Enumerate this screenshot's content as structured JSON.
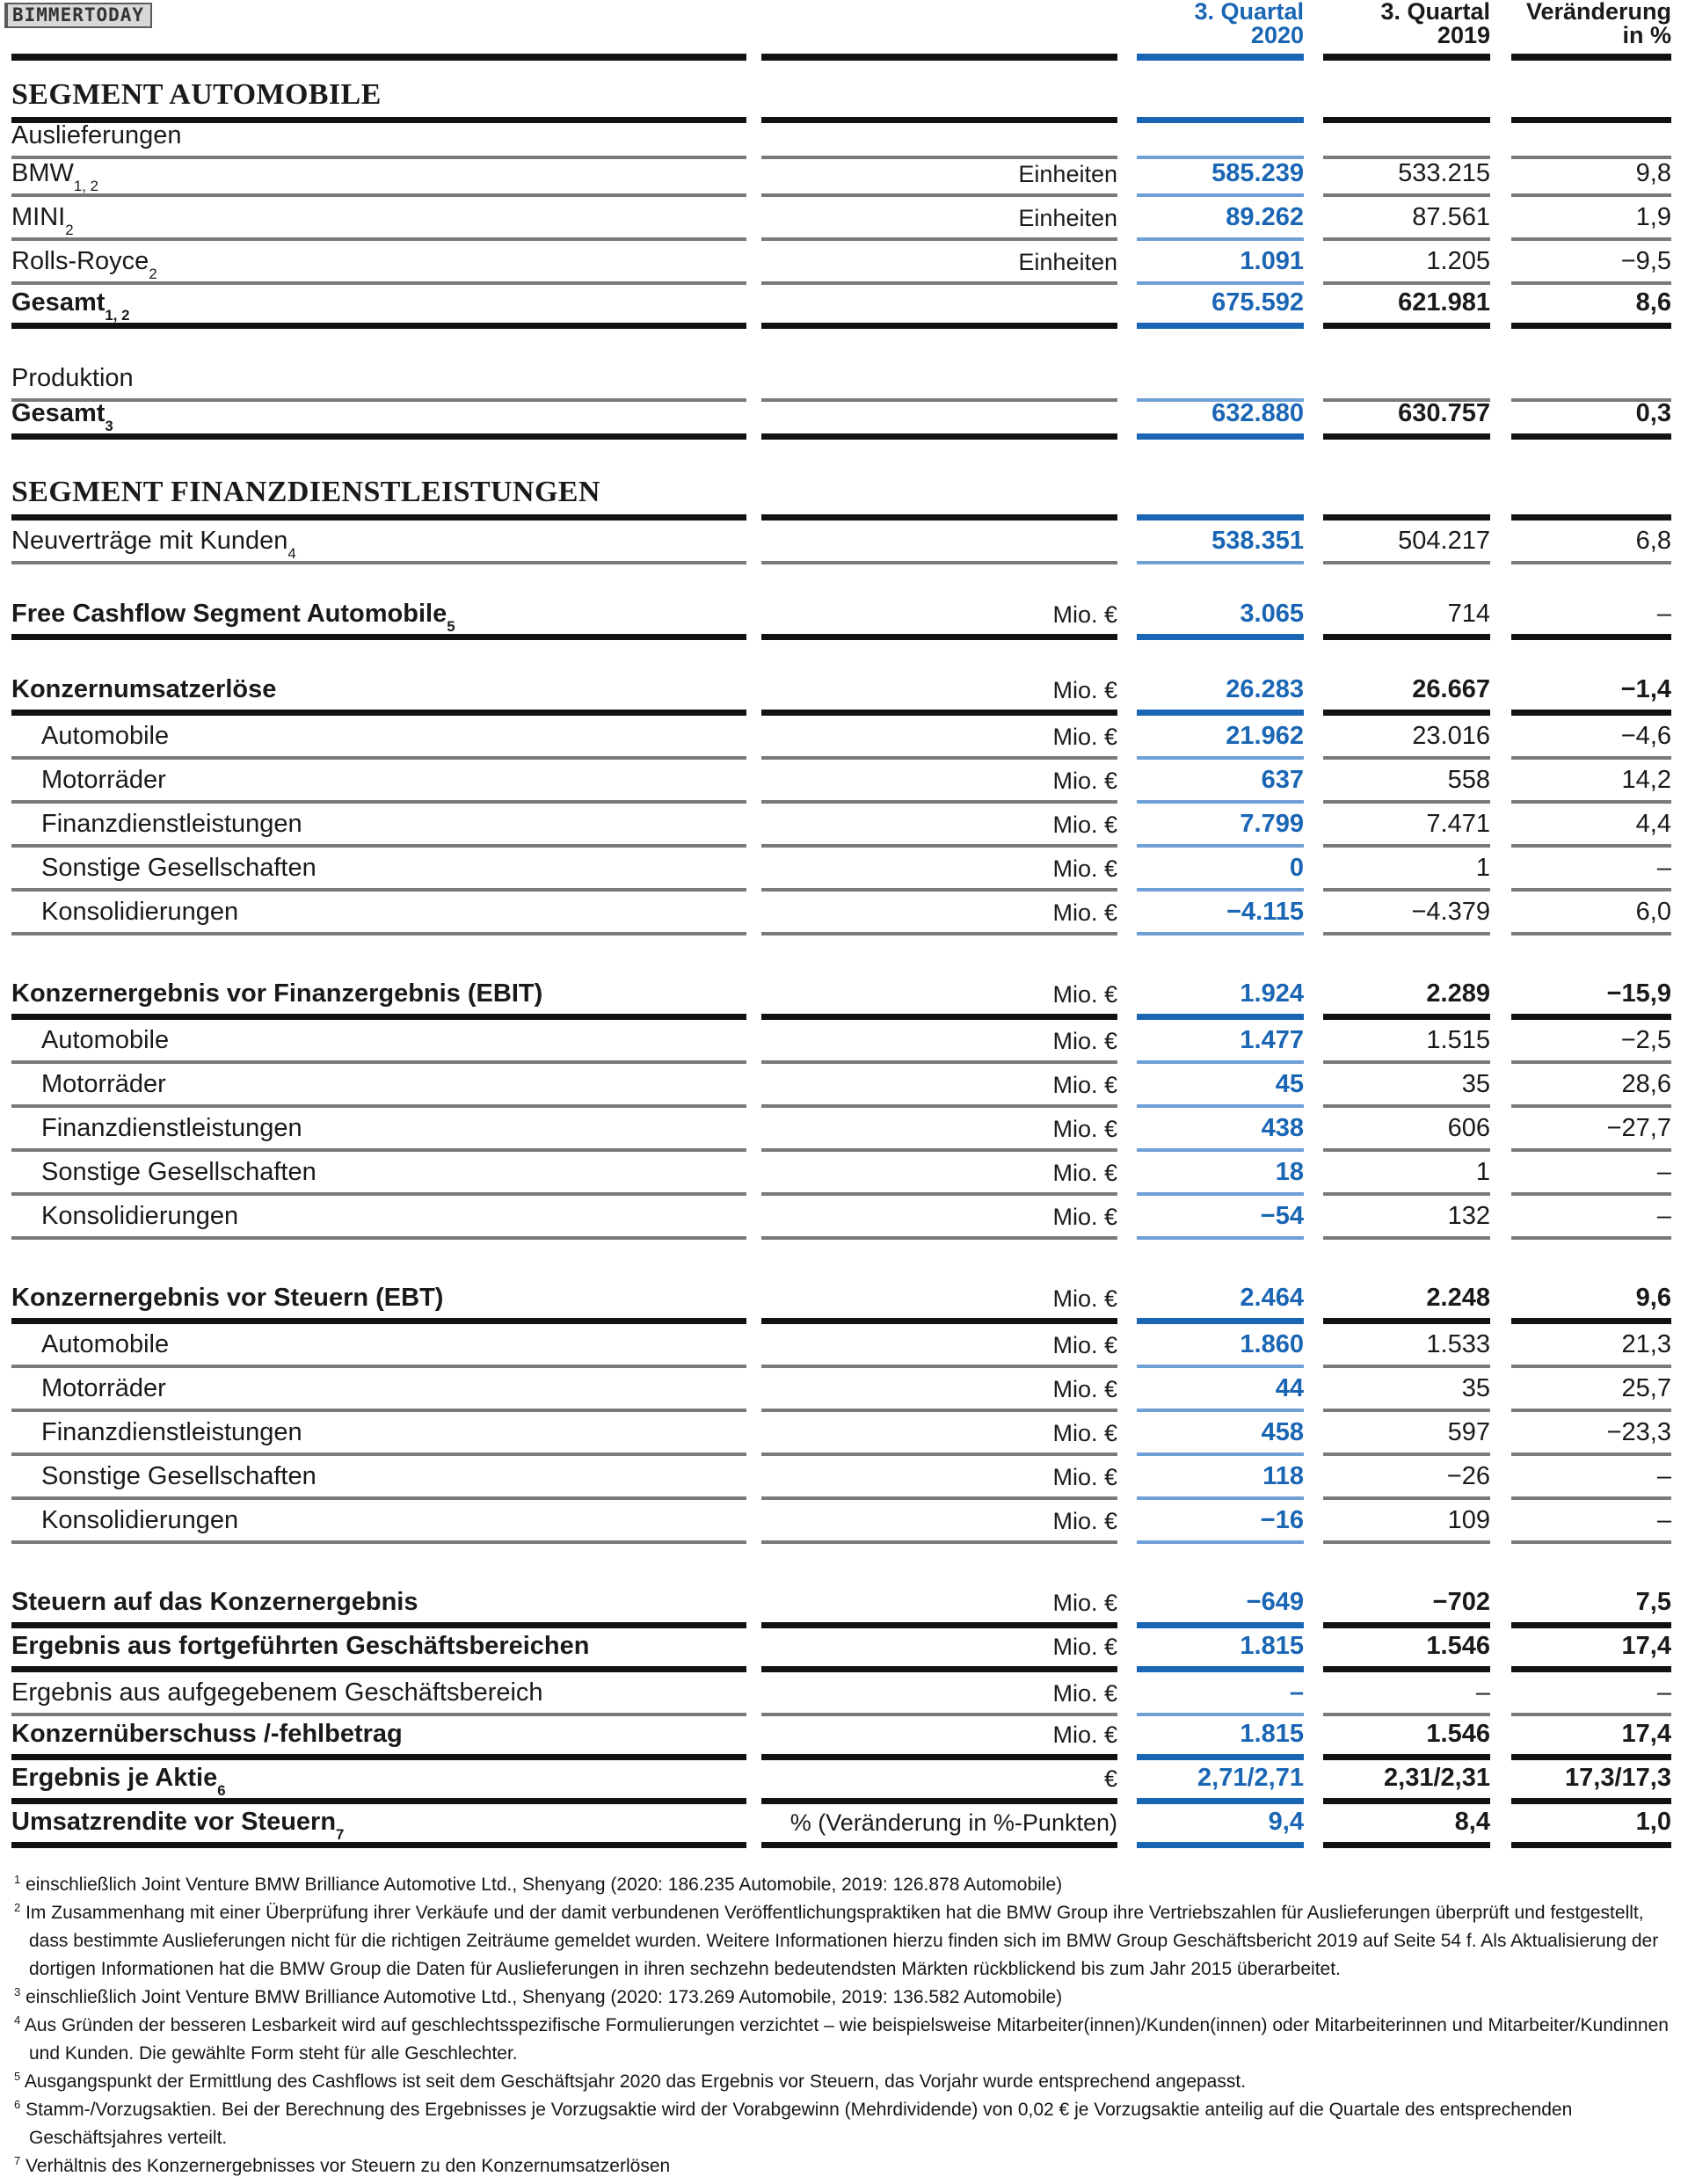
{
  "watermark": "BIMMERTODAY",
  "colors": {
    "blue_text": "#1A66B4",
    "blue_rule_thin": "#6E9FD5",
    "black_rule": "#121212",
    "gray_rule": "#7a7a7a"
  },
  "table": {
    "columns": {
      "c2020": "3. Quartal 2020",
      "c2019": "3. Quartal 2019",
      "change": "Veränderung in %"
    },
    "rows": [
      {
        "type": "colheader"
      },
      {
        "type": "spacer",
        "h": 42
      },
      {
        "type": "section",
        "label": "SEGMENT AUTOMOBILE"
      },
      {
        "type": "subhead",
        "label": "Auslieferungen"
      },
      {
        "type": "data",
        "label": "BMW",
        "sup": "1, 2",
        "unit": "Einheiten",
        "v2020": "585.239",
        "v2019": "533.215",
        "chg": "9,8",
        "rule": "thin"
      },
      {
        "type": "data",
        "label": "MINI",
        "sup": "2",
        "unit": "Einheiten",
        "v2020": "89.262",
        "v2019": "87.561",
        "chg": "1,9",
        "rule": "thin"
      },
      {
        "type": "data",
        "label": "Rolls-Royce",
        "sup": "2",
        "unit": "Einheiten",
        "v2020": "1.091",
        "v2019": "1.205",
        "chg": "−9,5",
        "rule": "thin"
      },
      {
        "type": "data",
        "label": "Gesamt",
        "sup": "1, 2",
        "bold": true,
        "vb": true,
        "unit": "",
        "v2020": "675.592",
        "v2019": "621.981",
        "chg": "8,6",
        "rule": "thick"
      },
      {
        "type": "spacer",
        "h": 42
      },
      {
        "type": "subhead",
        "label": "Produktion"
      },
      {
        "type": "data",
        "label": "Gesamt",
        "sup": "3",
        "bold": true,
        "vb": true,
        "unit": "",
        "v2020": "632.880",
        "v2019": "630.757",
        "chg": "0,3",
        "rule": "thick"
      },
      {
        "type": "spacer",
        "h": 42
      },
      {
        "type": "section",
        "label": "SEGMENT FINANZDIENSTLEISTUNGEN"
      },
      {
        "type": "data",
        "label": "Neuverträge mit Kunden",
        "sup": "4",
        "unit": "",
        "v2020": "538.351",
        "v2019": "504.217",
        "chg": "6,8",
        "rule": "thin"
      },
      {
        "type": "spacer",
        "h": 36
      },
      {
        "type": "data",
        "label": "Free Cashflow Segment Automobile",
        "sup": "5",
        "bold": true,
        "unit": "Mio. €",
        "v2020": "3.065",
        "v2019": "714",
        "chg": "–",
        "rule": "thick"
      },
      {
        "type": "spacer",
        "h": 36
      },
      {
        "type": "data",
        "label": "Konzernumsatzerlöse",
        "bold": true,
        "vb": true,
        "unit": "Mio. €",
        "v2020": "26.283",
        "v2019": "26.667",
        "chg": "−1,4",
        "rule": "thick"
      },
      {
        "type": "data",
        "label": "Automobile",
        "indent": true,
        "unit": "Mio. €",
        "v2020": "21.962",
        "v2019": "23.016",
        "chg": "−4,6",
        "rule": "thin"
      },
      {
        "type": "data",
        "label": "Motorräder",
        "indent": true,
        "unit": "Mio. €",
        "v2020": "637",
        "v2019": "558",
        "chg": "14,2",
        "rule": "thin"
      },
      {
        "type": "data",
        "label": "Finanzdienstleistungen",
        "indent": true,
        "unit": "Mio. €",
        "v2020": "7.799",
        "v2019": "7.471",
        "chg": "4,4",
        "rule": "thin"
      },
      {
        "type": "data",
        "label": "Sonstige Gesellschaften",
        "indent": true,
        "unit": "Mio. €",
        "v2020": "0",
        "v2019": "1",
        "chg": "–",
        "rule": "thin"
      },
      {
        "type": "data",
        "label": "Konsolidierungen",
        "indent": true,
        "unit": "Mio. €",
        "v2020": "−4.115",
        "v2019": "−4.379",
        "chg": "6,0",
        "rule": "thin"
      },
      {
        "type": "spacer",
        "h": 46
      },
      {
        "type": "data",
        "label": "Konzernergebnis vor Finanzergebnis (EBIT)",
        "bold": true,
        "vb": true,
        "unit": "Mio. €",
        "v2020": "1.924",
        "v2019": "2.289",
        "chg": "−15,9",
        "rule": "thick"
      },
      {
        "type": "data",
        "label": "Automobile",
        "indent": true,
        "unit": "Mio. €",
        "v2020": "1.477",
        "v2019": "1.515",
        "chg": "−2,5",
        "rule": "thin"
      },
      {
        "type": "data",
        "label": "Motorräder",
        "indent": true,
        "unit": "Mio. €",
        "v2020": "45",
        "v2019": "35",
        "chg": "28,6",
        "rule": "thin"
      },
      {
        "type": "data",
        "label": "Finanzdienstleistungen",
        "indent": true,
        "unit": "Mio. €",
        "v2020": "438",
        "v2019": "606",
        "chg": "−27,7",
        "rule": "thin"
      },
      {
        "type": "data",
        "label": "Sonstige Gesellschaften",
        "indent": true,
        "unit": "Mio. €",
        "v2020": "18",
        "v2019": "1",
        "chg": "–",
        "rule": "thin"
      },
      {
        "type": "data",
        "label": "Konsolidierungen",
        "indent": true,
        "unit": "Mio. €",
        "v2020": "−54",
        "v2019": "132",
        "chg": "–",
        "rule": "thin"
      },
      {
        "type": "spacer",
        "h": 46
      },
      {
        "type": "data",
        "label": "Konzernergebnis vor Steuern (EBT)",
        "bold": true,
        "vb": true,
        "unit": "Mio. €",
        "v2020": "2.464",
        "v2019": "2.248",
        "chg": "9,6",
        "rule": "thick"
      },
      {
        "type": "data",
        "label": "Automobile",
        "indent": true,
        "unit": "Mio. €",
        "v2020": "1.860",
        "v2019": "1.533",
        "chg": "21,3",
        "rule": "thin"
      },
      {
        "type": "data",
        "label": "Motorräder",
        "indent": true,
        "unit": "Mio. €",
        "v2020": "44",
        "v2019": "35",
        "chg": "25,7",
        "rule": "thin"
      },
      {
        "type": "data",
        "label": "Finanzdienstleistungen",
        "indent": true,
        "unit": "Mio. €",
        "v2020": "458",
        "v2019": "597",
        "chg": "−23,3",
        "rule": "thin"
      },
      {
        "type": "data",
        "label": "Sonstige Gesellschaften",
        "indent": true,
        "unit": "Mio. €",
        "v2020": "118",
        "v2019": "−26",
        "chg": "–",
        "rule": "thin"
      },
      {
        "type": "data",
        "label": "Konsolidierungen",
        "indent": true,
        "unit": "Mio. €",
        "v2020": "−16",
        "v2019": "109",
        "chg": "–",
        "rule": "thin"
      },
      {
        "type": "spacer",
        "h": 46
      },
      {
        "type": "data",
        "label": "Steuern auf das Konzernergebnis",
        "bold": true,
        "vb": true,
        "unit": "Mio. €",
        "v2020": "−649",
        "v2019": "−702",
        "chg": "7,5",
        "rule": "thick"
      },
      {
        "type": "data",
        "label": "Ergebnis aus fortgeführten Geschäftsbereichen",
        "bold": true,
        "vb": true,
        "unit": "Mio. €",
        "v2020": "1.815",
        "v2019": "1.546",
        "chg": "17,4",
        "rule": "thick"
      },
      {
        "type": "data",
        "label": "Ergebnis aus aufgegebenem Geschäftsbereich",
        "unit": "Mio. €",
        "v2020": "–",
        "v2019": "–",
        "chg": "–",
        "rule": "thin"
      },
      {
        "type": "data",
        "label": "Konzernüberschuss /-fehlbetrag",
        "bold": true,
        "vb": true,
        "unit": "Mio. €",
        "v2020": "1.815",
        "v2019": "1.546",
        "chg": "17,4",
        "rule": "thick"
      },
      {
        "type": "data",
        "label": "Ergebnis je Aktie",
        "sup": "6",
        "bold": true,
        "vb": true,
        "unit": "€",
        "v2020": "2,71/2,71",
        "v2019": "2,31/2,31",
        "chg": "17,3/17,3",
        "rule": "thick"
      },
      {
        "type": "data",
        "label": "Umsatzrendite vor Steuern",
        "sup": "7",
        "bold": true,
        "vb": true,
        "unit": "% (Veränderung in %-Punkten)",
        "v2020": "9,4",
        "v2019": "8,4",
        "chg": "1,0",
        "rule": "thick"
      }
    ]
  },
  "footnotes": [
    {
      "marker": "1",
      "text": "einschließlich Joint Venture BMW Brilliance Automotive Ltd., Shenyang (2020: 186.235 Automobile, 2019: 126.878 Automobile)"
    },
    {
      "marker": "2",
      "text": "Im Zusammenhang mit einer Überprüfung ihrer Verkäufe und der damit verbundenen Veröffentlichungspraktiken hat die BMW Group ihre Vertriebszahlen für Auslieferungen überprüft und festgestellt, dass bestimmte Auslieferungen nicht für die richtigen Zeiträume gemeldet wurden. Weitere Informationen hierzu finden sich im BMW Group Geschäftsbericht 2019 auf Seite 54 f. Als Aktualisierung der dortigen Informationen hat die BMW Group die Daten für Auslieferungen in ihren sechzehn bedeutendsten Märkten rückblickend bis zum Jahr 2015 überarbeitet."
    },
    {
      "marker": "3",
      "text": "einschließlich Joint Venture BMW Brilliance Automotive Ltd., Shenyang (2020: 173.269 Automobile, 2019: 136.582 Automobile)"
    },
    {
      "marker": "4",
      "text": "Aus Gründen der besseren Lesbarkeit wird auf geschlechtsspezifische Formulierungen verzichtet – wie beispielsweise Mitarbeiter(innen)/Kunden(innen) oder Mitarbeiterinnen und Mitarbeiter/Kundinnen und Kunden. Die gewählte Form steht für alle Geschlechter."
    },
    {
      "marker": "5",
      "text": "Ausgangspunkt der Ermittlung des Cashflows ist seit dem Geschäftsjahr 2020 das Ergebnis vor Steuern, das Vorjahr wurde entsprechend angepasst."
    },
    {
      "marker": "6",
      "text": "Stamm-/Vorzugsaktien. Bei der Berechnung des Ergebnisses je Vorzugsaktie wird der Vorabgewinn (Mehrdividende) von 0,02 € je Vorzugsaktie anteilig auf die Quartale des entsprechenden Geschäftsjahres verteilt."
    },
    {
      "marker": "7",
      "text": "Verhältnis des Konzernergebnisses vor Steuern zu den Konzernumsatzerlösen"
    }
  ]
}
